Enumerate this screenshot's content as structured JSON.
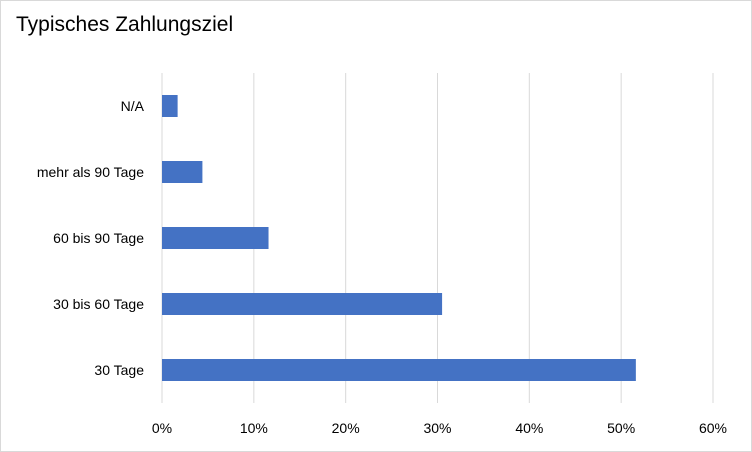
{
  "chart_data": {
    "type": "bar",
    "orientation": "horizontal",
    "title": "Typisches Zahlungsziel",
    "categories": [
      "N/A",
      "mehr als 90 Tage",
      "60 bis 90 Tage",
      "30 bis 60 Tage",
      "30 Tage"
    ],
    "values": [
      0.017,
      0.044,
      0.116,
      0.305,
      0.516
    ],
    "xlim": [
      0,
      0.6
    ],
    "xticks": [
      "0%",
      "10%",
      "20%",
      "30%",
      "40%",
      "50%",
      "60%"
    ],
    "xlabel": "",
    "ylabel": "",
    "grid": "vertical",
    "legend": "none",
    "bar_color": "#4472C4",
    "grid_color": "#d9d9d9"
  }
}
